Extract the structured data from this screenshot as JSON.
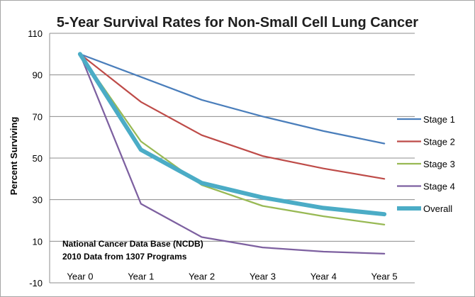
{
  "chart_data": {
    "type": "line",
    "title": "5-Year Survival Rates for Non-Small Cell Lung Cancer",
    "ylabel": "Percent Surviving",
    "xlabel": "",
    "categories": [
      "Year 0",
      "Year 1",
      "Year 2",
      "Year 3",
      "Year 4",
      "Year 5"
    ],
    "ylim": [
      -10,
      110
    ],
    "yticks": [
      -10,
      10,
      30,
      50,
      70,
      90,
      110
    ],
    "grid": "horizontal",
    "legend_position": "right",
    "series": [
      {
        "name": "Stage 1",
        "color": "#4a7ebb",
        "values": [
          100,
          89,
          78,
          70,
          63,
          57
        ]
      },
      {
        "name": "Stage 2",
        "color": "#be4b48",
        "values": [
          100,
          77,
          61,
          51,
          45,
          40
        ]
      },
      {
        "name": "Stage 3",
        "color": "#98b954",
        "values": [
          100,
          58,
          37,
          27,
          22,
          18
        ]
      },
      {
        "name": "Stage 4",
        "color": "#7d60a0",
        "values": [
          100,
          28,
          12,
          7,
          5,
          4
        ]
      },
      {
        "name": "Overall",
        "color": "#4bacc6",
        "values": [
          100,
          54,
          38,
          31,
          26,
          23
        ],
        "thick": true
      }
    ],
    "annotation": [
      "National Cancer Data Base (NCDB)",
      "2010 Data from 1307 Programs"
    ]
  }
}
